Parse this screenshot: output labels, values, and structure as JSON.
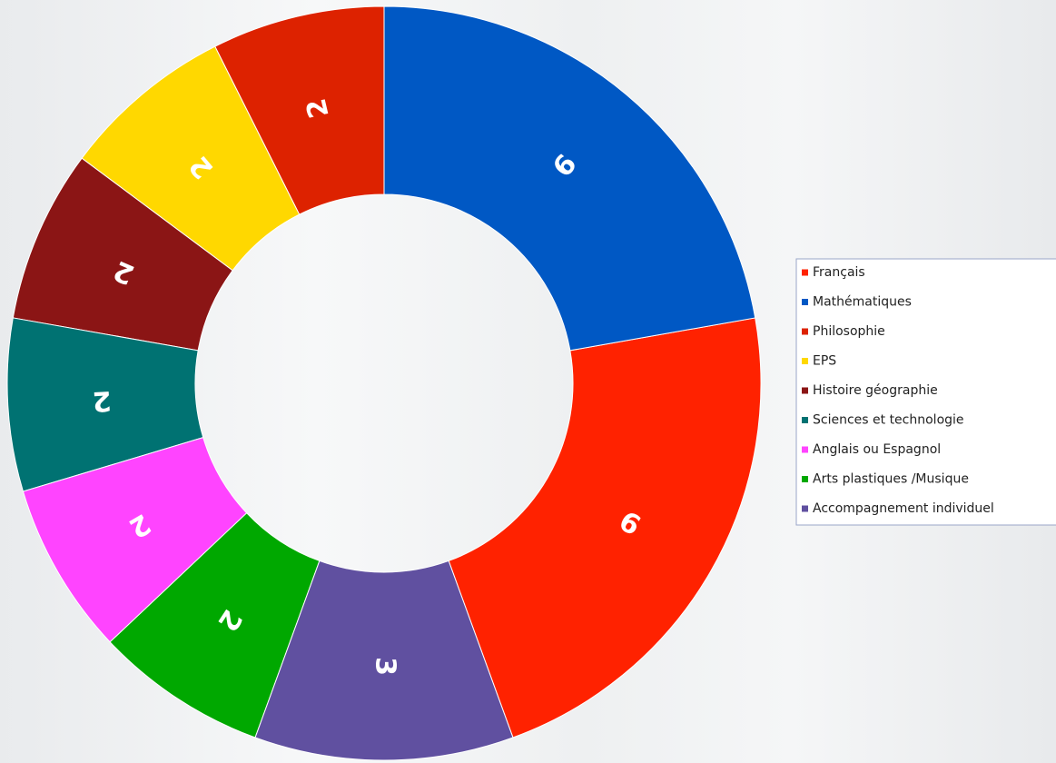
{
  "chart_data": {
    "type": "donut",
    "categories": [
      "Français",
      "Mathématiques",
      "Philosophie",
      "EPS",
      "Histoire géographie",
      "Sciences et technologie",
      "Anglais ou Espagnol",
      "Arts plastiques /Musique",
      "Accompagnement individuel"
    ],
    "values": [
      6,
      6,
      2,
      2,
      2,
      2,
      2,
      2,
      3
    ],
    "colors": [
      "#ff2200",
      "#0058c4",
      "#dd2200",
      "#ffd800",
      "#8b1515",
      "#007272",
      "#ff44ff",
      "#00a800",
      "#6050a0"
    ],
    "legend": "right"
  }
}
